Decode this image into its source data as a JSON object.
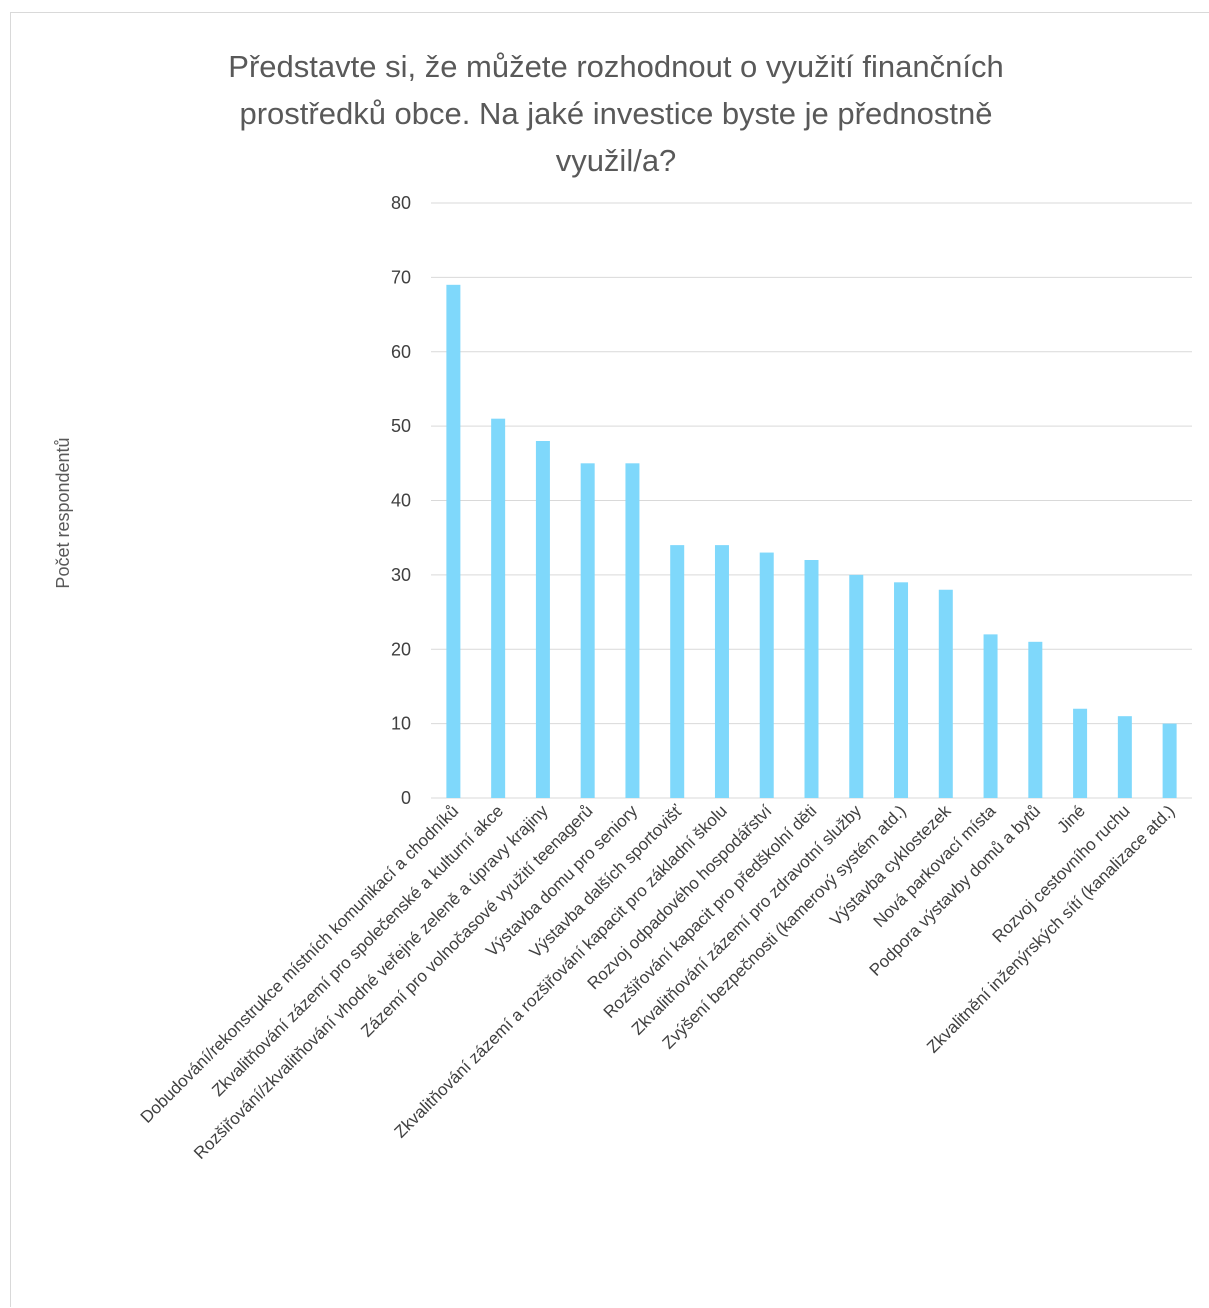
{
  "chart_data": {
    "type": "bar",
    "title": "Představte si, že můžete rozhodnout o využití finančních prostředků obce. Na jaké investice byste je přednostně využil/a?",
    "title_lines": [
      "Představte si, že můžete rozhodnout o využití finančních",
      "prostředků obce. Na jaké investice byste je přednostně",
      "využil/a?"
    ],
    "xlabel": "",
    "ylabel": "Počet respondentů",
    "ylim": [
      0,
      80
    ],
    "yticks": [
      0,
      10,
      20,
      30,
      40,
      50,
      60,
      70,
      80
    ],
    "grid": true,
    "bar_color": "#7fd8fb",
    "gridline_color": "#d9d9d9",
    "categories": [
      "Dobudování/rekonstrukce místních komunikací a chodníků",
      "Zkvalitňování zázemí pro společenské a kulturní akce",
      "Rozšiřování/zkvalitňování vhodné veřejné zeleně a úpravy krajiny",
      "Zázemí pro volnočasové využití teenagerů",
      "Výstavba domu pro seniory",
      "Výstavba dalších sportovišť",
      "Zkvalitňování zázemí a rozšiřování kapacit pro základní školu",
      "Rozvoj odpadového hospodářství",
      "Rozšiřování kapacit pro předškolní děti",
      "Zkvalitňování zázemí pro zdravotní služby",
      "Zvýšení bezpečnosti (kamerový systém atd.)",
      "Výstavba cyklostezek",
      "Nová parkovací místa",
      "Podpora výstavby domů a bytů",
      "Jiné",
      "Rozvoj cestovního ruchu",
      "Zkvalitnění inženýrských sítí (kanalizace atd.)"
    ],
    "values": [
      69,
      51,
      48,
      45,
      45,
      34,
      34,
      33,
      32,
      30,
      29,
      28,
      22,
      21,
      12,
      11,
      10
    ]
  }
}
